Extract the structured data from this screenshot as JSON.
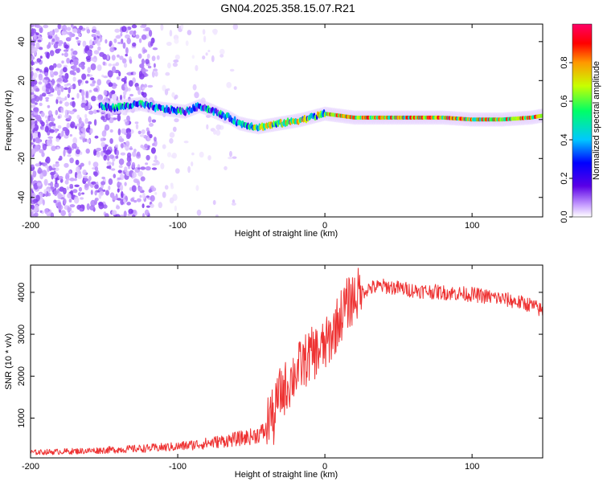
{
  "title": "GN04.2025.358.15.07.R21",
  "chart_data": [
    {
      "type": "heatmap",
      "name": "spectrogram",
      "xlabel": "Height of straight line (km)",
      "ylabel": "Frequency (Hz)",
      "xlim": [
        -200,
        148
      ],
      "ylim": [
        -50,
        49
      ],
      "xticks": [
        -200,
        -100,
        0,
        100
      ],
      "yticks": [
        -40,
        -20,
        0,
        20,
        40
      ],
      "colorbar": {
        "label": "Normalized spectral amplitude",
        "range": [
          0,
          1
        ],
        "ticks": [
          0.0,
          0.2,
          0.4,
          0.6,
          0.8
        ],
        "tick_labels": [
          "0.0",
          "0.2",
          "0.4",
          "0.6",
          "0.8"
        ],
        "colormap": [
          "#ffffff",
          "#c8a0ff",
          "#5a00e6",
          "#0000ff",
          "#00c8ff",
          "#00ff66",
          "#c8ff00",
          "#ff9900",
          "#ff0000",
          "#ff0066"
        ]
      },
      "ridge_track": {
        "height_km": [
          -153,
          -145,
          -135,
          -125,
          -115,
          -105,
          -95,
          -85,
          -78,
          -72,
          -65,
          -58,
          -52,
          -45,
          -38,
          -30,
          -22,
          -15,
          -10,
          -5,
          0,
          10,
          20,
          40,
          60,
          80,
          100,
          120,
          140,
          148
        ],
        "frequency_hz": [
          7,
          6,
          7,
          8,
          6,
          5,
          4,
          7,
          5,
          3,
          1,
          -2,
          -3,
          -4,
          -3,
          -2,
          -1,
          0,
          1,
          2,
          3,
          2,
          1,
          1,
          1,
          1,
          0,
          0,
          1,
          2
        ]
      },
      "noise_region": {
        "height_km": [
          -200,
          -60
        ],
        "description": "scattered low-amplitude speckle"
      }
    },
    {
      "type": "line",
      "name": "snr",
      "xlabel": "Height of straight line (km)",
      "ylabel": "SNR (10 * v/v)",
      "xlim": [
        -200,
        148
      ],
      "ylim": [
        50,
        4650
      ],
      "xticks": [
        -200,
        -100,
        0,
        100
      ],
      "yticks": [
        1000,
        2000,
        3000,
        4000
      ],
      "color": "#ee3333",
      "series": [
        {
          "name": "SNR",
          "x": [
            -200,
            -180,
            -160,
            -140,
            -120,
            -100,
            -90,
            -80,
            -70,
            -60,
            -50,
            -45,
            -40,
            -37,
            -35,
            -32,
            -30,
            -25,
            -20,
            -15,
            -10,
            -5,
            0,
            5,
            10,
            15,
            20,
            25,
            30,
            40,
            50,
            60,
            80,
            100,
            120,
            140,
            148
          ],
          "y": [
            180,
            200,
            220,
            250,
            280,
            320,
            360,
            400,
            450,
            500,
            560,
            620,
            700,
            1200,
            900,
            1500,
            1600,
            1800,
            2100,
            2300,
            2500,
            2600,
            2700,
            3000,
            3400,
            3700,
            3900,
            4000,
            4100,
            4150,
            4100,
            4050,
            4000,
            3950,
            3850,
            3700,
            3550
          ]
        }
      ]
    }
  ]
}
